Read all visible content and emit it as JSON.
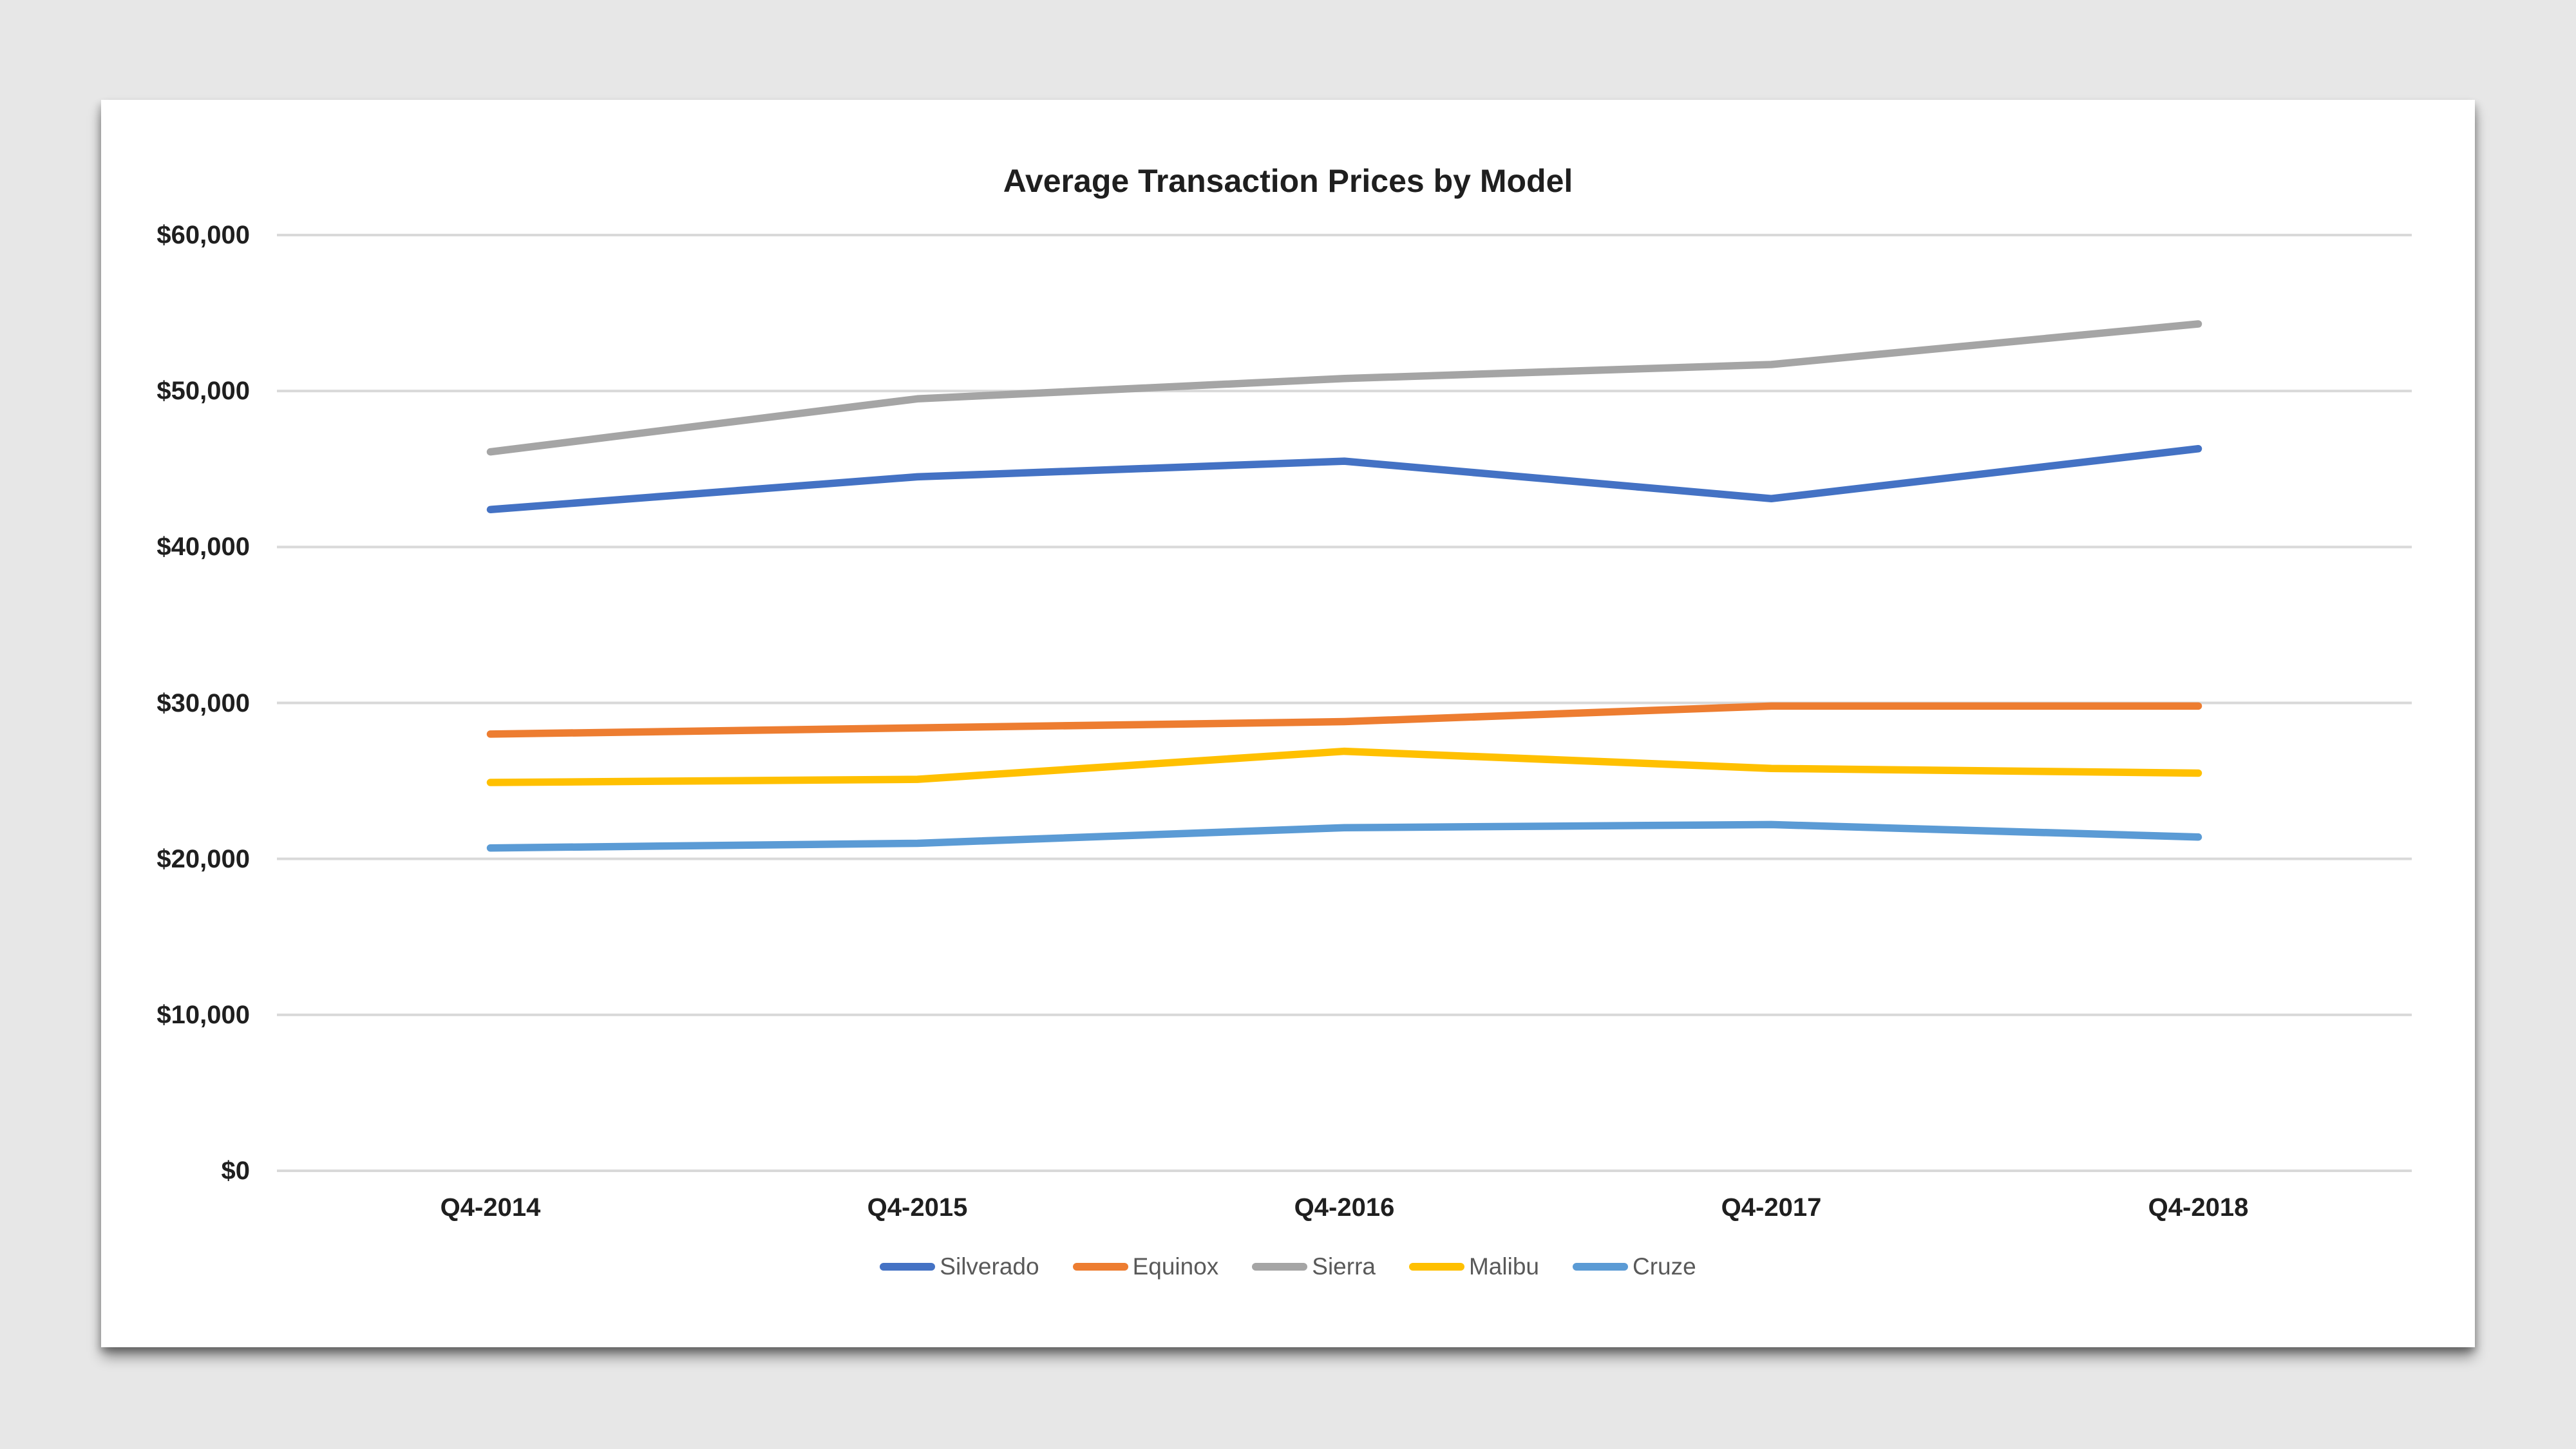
{
  "chart_data": {
    "type": "line",
    "title": "Average Transaction Prices by Model",
    "categories": [
      "Q4-2014",
      "Q4-2015",
      "Q4-2016",
      "Q4-2017",
      "Q4-2018"
    ],
    "series": [
      {
        "name": "Silverado",
        "color": "#4472c4",
        "values": [
          42400,
          44500,
          45500,
          43100,
          46300
        ]
      },
      {
        "name": "Equinox",
        "color": "#ed7d31",
        "values": [
          28000,
          28400,
          28800,
          29800,
          29800
        ]
      },
      {
        "name": "Sierra",
        "color": "#a5a5a5",
        "values": [
          46100,
          49500,
          50800,
          51700,
          54300
        ]
      },
      {
        "name": "Malibu",
        "color": "#ffc000",
        "values": [
          24900,
          25100,
          26900,
          25800,
          25500
        ]
      },
      {
        "name": "Cruze",
        "color": "#5b9bd5",
        "values": [
          20700,
          21000,
          22000,
          22200,
          21400
        ]
      }
    ],
    "y_axis": {
      "min": 0,
      "max": 60000,
      "step": 10000,
      "tick_labels": [
        "$0",
        "$10,000",
        "$20,000",
        "$30,000",
        "$40,000",
        "$50,000",
        "$60,000"
      ]
    },
    "x_axis": {
      "tick_labels": [
        "Q4-2014",
        "Q4-2015",
        "Q4-2016",
        "Q4-2017",
        "Q4-2018"
      ]
    },
    "legend": {
      "position": "bottom",
      "entries": [
        "Silverado",
        "Equinox",
        "Sierra",
        "Malibu",
        "Cruze"
      ]
    },
    "grid": true,
    "colors": {
      "page_background": "#e7e7e7",
      "card_background": "#ffffff",
      "gridline": "#d9d9d9",
      "tick_text": "#1f1f1f",
      "legend_text": "#595959"
    }
  }
}
